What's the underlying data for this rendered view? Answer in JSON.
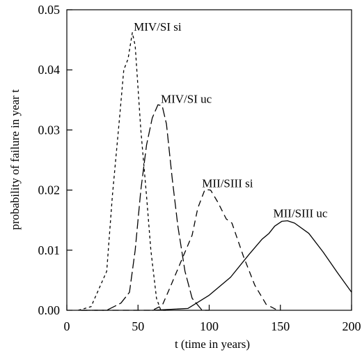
{
  "chart_data": {
    "type": "line",
    "title": "",
    "xlabel": "t (time in years)",
    "ylabel": "probability of failure in year t",
    "xlim": [
      0,
      200
    ],
    "ylim": [
      0,
      0.05
    ],
    "x_ticks": [
      0,
      50,
      100,
      150,
      200
    ],
    "x_tick_labels": [
      "0",
      "50",
      "100",
      "150",
      "200"
    ],
    "y_ticks": [
      0,
      0.01,
      0.02,
      0.03,
      0.04,
      0.05
    ],
    "y_tick_labels": [
      "0.00",
      "0.01",
      "0.02",
      "0.03",
      "0.04",
      "0.05"
    ],
    "grid": false,
    "legend": "none (series labeled directly on plot)",
    "series": [
      {
        "name": "MIV/SI si",
        "dash": "short-dash",
        "label_at": [
          47,
          0.0465
        ],
        "points": [
          [
            8,
            0
          ],
          [
            17,
            0.0006
          ],
          [
            28,
            0.0065
          ],
          [
            32,
            0.019
          ],
          [
            37,
            0.032
          ],
          [
            40,
            0.04
          ],
          [
            43,
            0.0418
          ],
          [
            46,
            0.0462
          ],
          [
            48,
            0.044
          ],
          [
            52,
            0.03
          ],
          [
            56,
            0.019
          ],
          [
            59,
            0.01
          ],
          [
            63,
            0.002
          ],
          [
            66,
            0
          ],
          [
            70,
            0
          ]
        ]
      },
      {
        "name": "MIV/SI uc",
        "dash": "long-dash",
        "label_at": [
          66,
          0.0345
        ],
        "points": [
          [
            10,
            0
          ],
          [
            28,
            0
          ],
          [
            38,
            0.0012
          ],
          [
            44,
            0.003
          ],
          [
            48,
            0.01
          ],
          [
            52,
            0.02
          ],
          [
            56,
            0.0275
          ],
          [
            60,
            0.032
          ],
          [
            64,
            0.0342
          ],
          [
            67,
            0.034
          ],
          [
            70,
            0.031
          ],
          [
            74,
            0.022
          ],
          [
            78,
            0.014
          ],
          [
            83,
            0.0065
          ],
          [
            88,
            0.002
          ],
          [
            95,
            0
          ],
          [
            100,
            0
          ]
        ]
      },
      {
        "name": "MII/SIII si",
        "dash": "medium-dash",
        "label_at": [
          95,
          0.0205
        ],
        "points": [
          [
            10,
            0
          ],
          [
            60,
            0
          ],
          [
            67,
            0.0008
          ],
          [
            72,
            0.0035
          ],
          [
            80,
            0.008
          ],
          [
            88,
            0.0125
          ],
          [
            92,
            0.017
          ],
          [
            97,
            0.0201
          ],
          [
            101,
            0.02
          ],
          [
            106,
            0.018
          ],
          [
            112,
            0.0152
          ],
          [
            116,
            0.0145
          ],
          [
            124,
            0.009
          ],
          [
            132,
            0.0042
          ],
          [
            140,
            0.001
          ],
          [
            148,
            0
          ],
          [
            150,
            0
          ]
        ]
      },
      {
        "name": "MII/SIII uc",
        "dash": "solid",
        "label_at": [
          145,
          0.0155
        ],
        "points": [
          [
            60,
            0
          ],
          [
            85,
            0.0003
          ],
          [
            100,
            0.0025
          ],
          [
            115,
            0.0055
          ],
          [
            128,
            0.0093
          ],
          [
            137,
            0.0118
          ],
          [
            142,
            0.0128
          ],
          [
            146,
            0.014
          ],
          [
            151,
            0.0148
          ],
          [
            155,
            0.0149
          ],
          [
            160,
            0.0145
          ],
          [
            170,
            0.0128
          ],
          [
            180,
            0.0097
          ],
          [
            190,
            0.0063
          ],
          [
            200,
            0.003
          ]
        ]
      }
    ]
  }
}
